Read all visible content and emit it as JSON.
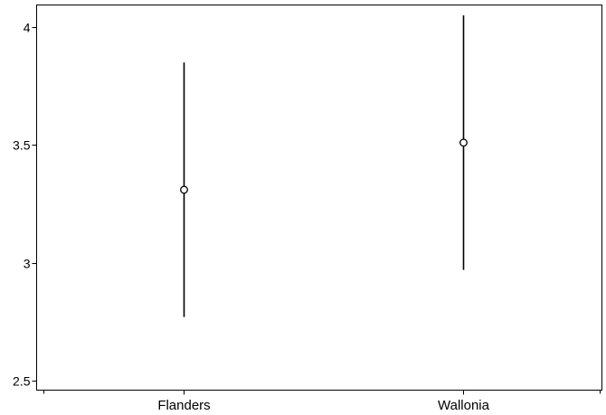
{
  "chart_data": {
    "type": "scatter",
    "subtype": "point-with-error-bars",
    "title": "",
    "xlabel": "",
    "ylabel": "",
    "categories": [
      "Flanders",
      "Wallonia"
    ],
    "points": [
      {
        "category": "Flanders",
        "estimate": 3.31,
        "lower": 2.77,
        "upper": 3.85
      },
      {
        "category": "Wallonia",
        "estimate": 3.51,
        "lower": 2.97,
        "upper": 4.05
      }
    ],
    "ylim": [
      2.45,
      4.1
    ],
    "yticks": [
      2.5,
      3,
      3.5,
      4
    ],
    "ytick_labels": [
      "2.5",
      "3",
      "3.5",
      "4"
    ],
    "grid": false,
    "legend": "none",
    "colors": {
      "marks": "#000000",
      "frame": "#000000",
      "background": "#ffffff"
    }
  }
}
